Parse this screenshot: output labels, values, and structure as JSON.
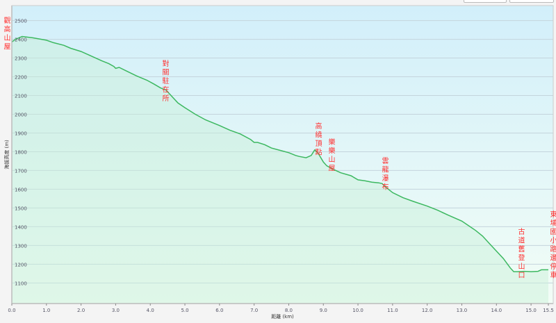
{
  "chart_data": {
    "type": "area",
    "title": "",
    "xlabel": "距離 (km)",
    "ylabel": "海拔高度 (m)",
    "xlim": [
      0,
      15.5
    ],
    "ylim": [
      990,
      2580
    ],
    "xticks": [
      0,
      1,
      2,
      3,
      4,
      5,
      6,
      7,
      8,
      9,
      10,
      11,
      12,
      13,
      14,
      15,
      15.5
    ],
    "xtick_labels": [
      "0.0",
      "1.0",
      "2.0",
      "3.0",
      "4.0",
      "5.0",
      "6.0",
      "7.0",
      "8.0",
      "9.0",
      "10.0",
      "11.0",
      "12.0",
      "13.0",
      "14.0",
      "15.0",
      "15.5"
    ],
    "yticks": [
      1100,
      1200,
      1300,
      1400,
      1500,
      1600,
      1700,
      1800,
      1900,
      2000,
      2100,
      2200,
      2300,
      2400,
      2500
    ],
    "grid": true,
    "colors": {
      "line": "#3cb860",
      "fill_top": "#d2effa",
      "fill_bottom": "#f2fdf6",
      "area": "#c8f0d8",
      "annotation": "#ff3030"
    },
    "series": [
      {
        "x": [
          0,
          0.1,
          0.3,
          0.6,
          1.0,
          1.2,
          1.5,
          1.7,
          2.0,
          2.3,
          2.6,
          2.8,
          2.95,
          3.0,
          3.1,
          3.3,
          3.6,
          3.9,
          4.1,
          4.3,
          4.45,
          4.6,
          4.8,
          5.0,
          5.3,
          5.6,
          6.0,
          6.3,
          6.6,
          6.9,
          7.0,
          7.1,
          7.3,
          7.5,
          7.8,
          8.0,
          8.2,
          8.3,
          8.5,
          8.65,
          8.75,
          8.85,
          9.0,
          9.1,
          9.3,
          9.5,
          9.8,
          10.0,
          10.2,
          10.4,
          10.6,
          10.7,
          10.8,
          11.0,
          11.3,
          11.6,
          12.0,
          12.3,
          12.6,
          13.0,
          13.2,
          13.4,
          13.6,
          13.8,
          14.0,
          14.2,
          14.4,
          14.5,
          14.6,
          14.8,
          15.0,
          15.2,
          15.3,
          15.5
        ],
        "y": [
          2385,
          2400,
          2415,
          2408,
          2395,
          2382,
          2368,
          2352,
          2335,
          2310,
          2285,
          2270,
          2255,
          2245,
          2250,
          2232,
          2205,
          2182,
          2162,
          2140,
          2130,
          2100,
          2060,
          2035,
          2000,
          1970,
          1940,
          1915,
          1895,
          1865,
          1850,
          1850,
          1838,
          1820,
          1805,
          1795,
          1780,
          1775,
          1768,
          1780,
          1810,
          1792,
          1745,
          1725,
          1705,
          1688,
          1672,
          1650,
          1645,
          1638,
          1634,
          1630,
          1612,
          1582,
          1555,
          1535,
          1510,
          1488,
          1462,
          1430,
          1405,
          1380,
          1350,
          1310,
          1270,
          1230,
          1180,
          1160,
          1160,
          1162,
          1160,
          1162,
          1170,
          1170
        ]
      }
    ],
    "annotations": [
      {
        "x": 0,
        "text": "觀高山屋"
      },
      {
        "x": 4.4,
        "text": "對關駐在所"
      },
      {
        "x": 8.75,
        "text": "高繞頂點"
      },
      {
        "x": 9.15,
        "text": "樂樂山屋"
      },
      {
        "x": 10.7,
        "text": "雲龍瀑布"
      },
      {
        "x": 14.6,
        "text": "古道舊登山口"
      },
      {
        "x": 15.5,
        "text": "東埔國小路邊停車"
      }
    ]
  }
}
